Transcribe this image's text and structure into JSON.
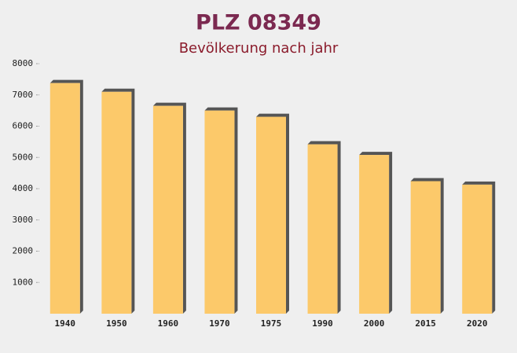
{
  "chart_data": {
    "type": "bar",
    "title": "PLZ 08349",
    "subtitle": "Bevölkerung nach jahr",
    "categories": [
      "1940",
      "1950",
      "1960",
      "1970",
      "1975",
      "1990",
      "2000",
      "2015",
      "2020"
    ],
    "values": [
      7380,
      7100,
      6650,
      6500,
      6300,
      5420,
      5080,
      4240,
      4130
    ],
    "color": "#fcc96a",
    "ylim": [
      0,
      8000
    ],
    "yticks": [
      1000,
      2000,
      3000,
      4000,
      5000,
      6000,
      7000,
      8000
    ],
    "grid": false
  }
}
